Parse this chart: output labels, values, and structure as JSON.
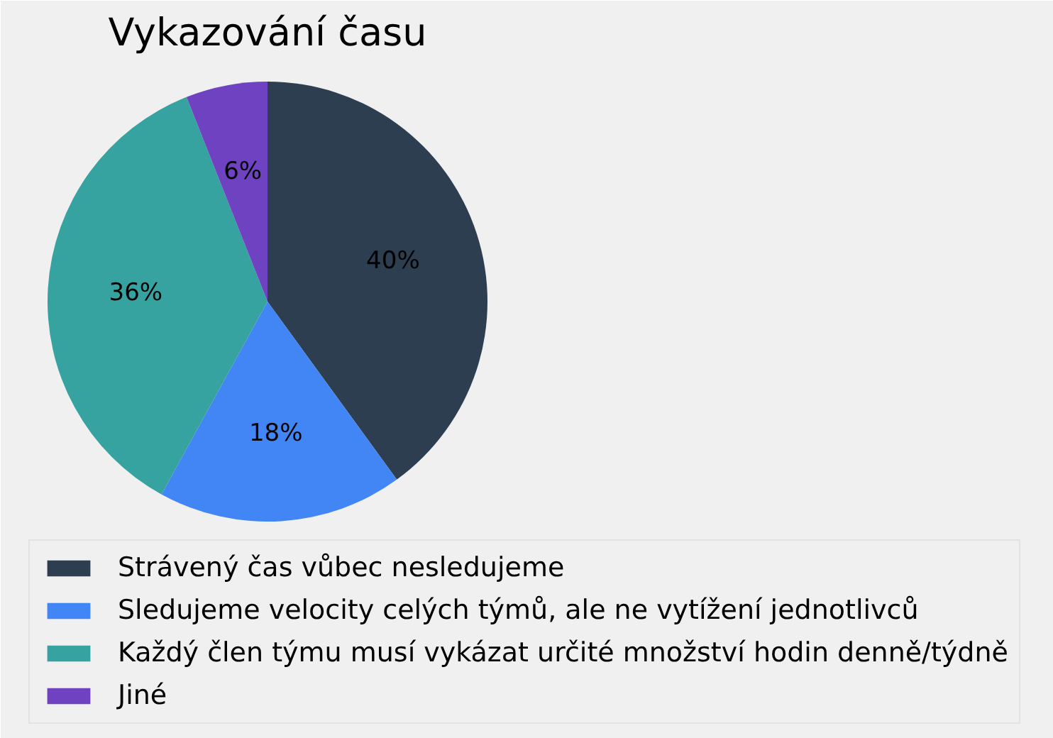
{
  "chart_data": {
    "type": "pie",
    "title": "Vykazování času",
    "categories": [
      "Strávený čas vůbec nesledujeme",
      "Sledujeme velocity celých týmů, ale ne vytížení jednotlivců",
      "Každý člen týmu musí vykázat určité množství hodin denně/týdně",
      "Jiné"
    ],
    "values": [
      40,
      18,
      36,
      6
    ],
    "colors": [
      "#2c3e50",
      "#4285f4",
      "#36a3a0",
      "#6f42c1"
    ],
    "value_labels": [
      "40%",
      "18%",
      "36%",
      "6%"
    ],
    "legend": "bottom"
  }
}
